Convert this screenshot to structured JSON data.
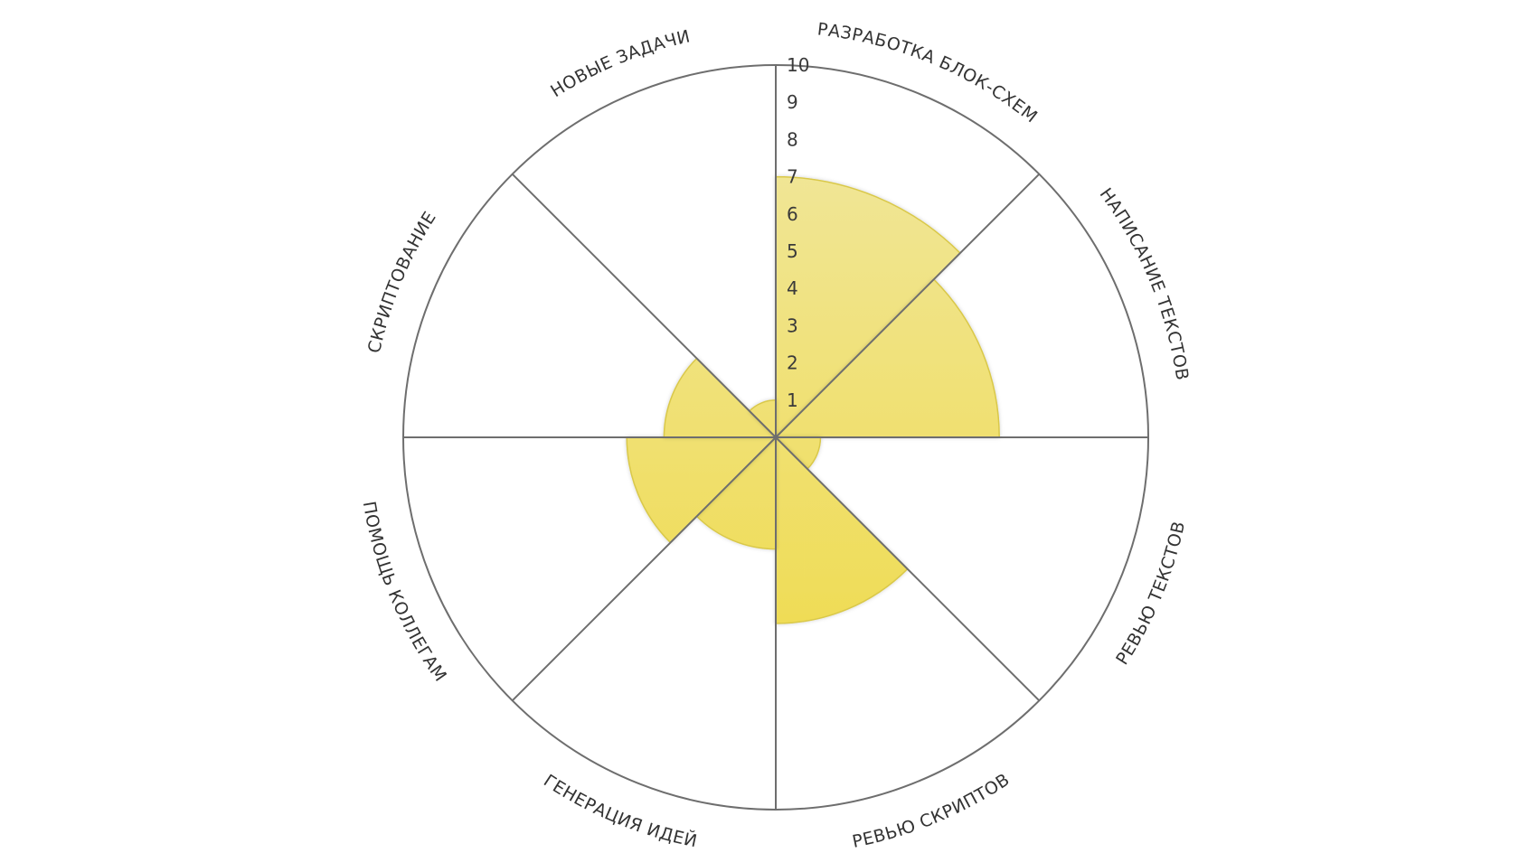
{
  "chart_data": {
    "type": "polar-area",
    "categories": [
      "РАЗРАБОТКА БЛОК-СХЕМ",
      "НАПИСАНИЕ ТЕКСТОВ",
      "РЕВЬЮ ТЕКСТОВ",
      "РЕВЬЮ СКРИПТОВ",
      "ГЕНЕРАЦИЯ ИДЕЙ",
      "ПОМОЩЬ КОЛЛЕГАМ",
      "СКРИПТОВАНИЕ",
      "НОВЫЕ ЗАДАЧИ"
    ],
    "values": [
      7,
      6,
      1.2,
      5,
      3,
      4,
      3,
      1
    ],
    "ticks": [
      "1",
      "2",
      "3",
      "4",
      "5",
      "6",
      "7",
      "8",
      "9",
      "10"
    ],
    "rlim": [
      0,
      10
    ],
    "grid": false,
    "colors": {
      "fill_light": "#f1e8a6",
      "fill_dark": "#efdc55",
      "fill_stroke": "#d9c84a",
      "line": "#6e6e6e"
    }
  }
}
